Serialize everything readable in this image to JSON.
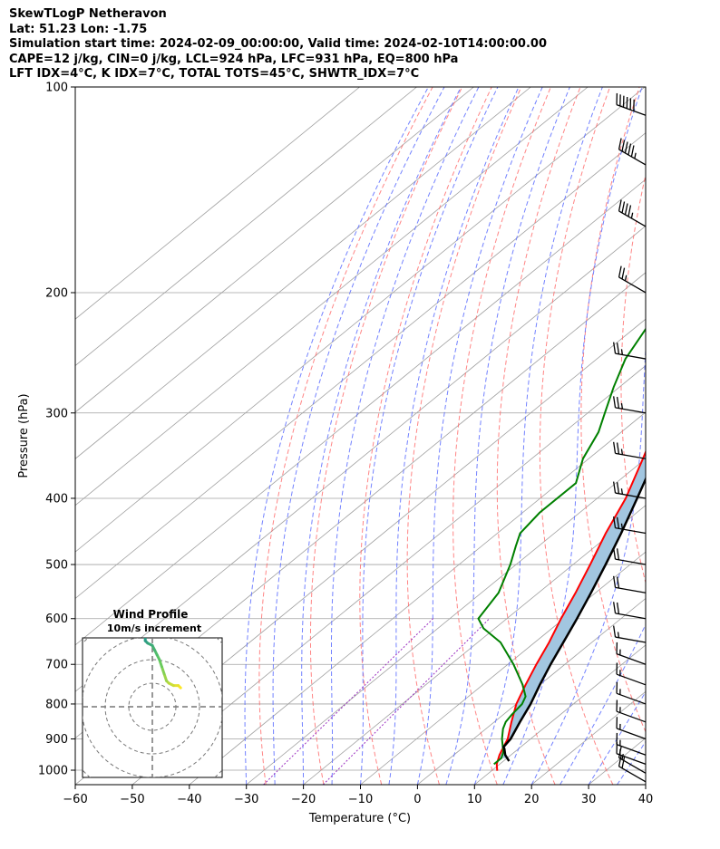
{
  "header": {
    "line1": "SkewTLogP Netheravon",
    "line2": "Lat: 51.23   Lon: -1.75",
    "line3": "Simulation start time: 2024-02-09_00:00:00, Valid time: 2024-02-10T14:00:00.00",
    "line4": "CAPE=12 j/kg, CIN=0 j/kg, LCL=924 hPa, LFC=931 hPa, EQ=800 hPa",
    "line5": "LFT IDX=4$^\\circ$C, K IDX=7$^\\circ$C, TOTAL TOTS=45$^\\circ$C, SHWTR_IDX=7$^\\circ$C"
  },
  "colors": {
    "temperature": "#ff0000",
    "dewpoint": "#008000",
    "parcel": "#000000",
    "cape_fill": "#a2c6e0",
    "dry_adiabat": "#ff6666",
    "moist_adiabat": "#5a6cff",
    "mixing_ratio": "#9a2fc0",
    "isotherm": "#a0a0a0"
  },
  "chart_data": {
    "type": "line",
    "title": "",
    "xlabel": "Temperature ($^\\circ$C)",
    "ylabel": "Pressure (hPa)",
    "xlim": [
      -60,
      40
    ],
    "ylim": [
      1050,
      100
    ],
    "yscale": "log",
    "grid": true,
    "x_ticks": [
      "−60",
      "−50",
      "−40",
      "−30",
      "−20",
      "−10",
      "0",
      "10",
      "20",
      "30",
      "40"
    ],
    "x_tick_values": [
      -60,
      -50,
      -40,
      -30,
      -20,
      -10,
      0,
      10,
      20,
      30,
      40
    ],
    "y_ticks": [
      "100",
      "200",
      "300",
      "400",
      "500",
      "600",
      "700",
      "800",
      "900",
      "1000"
    ],
    "y_tick_values": [
      100,
      200,
      300,
      400,
      500,
      600,
      700,
      800,
      900,
      1000
    ],
    "temperature": {
      "pressure": [
        1002,
        980,
        950,
        925,
        900,
        850,
        800,
        750,
        700,
        650,
        600,
        550,
        500,
        450,
        400,
        350,
        300,
        275,
        250,
        225,
        200,
        185,
        170,
        150,
        130,
        110,
        100
      ],
      "values": [
        11,
        9.5,
        8,
        7,
        6,
        3,
        0,
        -2.5,
        -5,
        -7.5,
        -10.5,
        -13.5,
        -17,
        -21,
        -25,
        -30.5,
        -37,
        -41,
        -44,
        -45.5,
        -48,
        -51.5,
        -55,
        -57,
        -59,
        -61,
        -62
      ]
    },
    "dewpoint": {
      "pressure": [
        980,
        960,
        940,
        920,
        900,
        870,
        850,
        830,
        800,
        780,
        750,
        700,
        650,
        620,
        600,
        550,
        500,
        470,
        450,
        420,
        380,
        350,
        320,
        300,
        275,
        250,
        225,
        200,
        170,
        150,
        130,
        100
      ],
      "values": [
        9,
        9,
        8,
        6.5,
        5,
        3,
        2,
        1.5,
        1,
        0,
        -3,
        -9,
        -16,
        -22,
        -25,
        -27,
        -31,
        -34,
        -36,
        -37,
        -37,
        -41,
        -44,
        -47,
        -51,
        -55,
        -58,
        -60,
        -60,
        -58,
        -58,
        -55
      ]
    },
    "parcel": {
      "pressure": [
        970,
        950,
        930,
        925,
        900,
        850,
        800,
        750,
        700,
        650,
        600,
        550,
        500,
        450,
        400,
        350,
        300,
        250,
        200,
        150,
        100
      ],
      "values": [
        11,
        9,
        7.5,
        7,
        6.5,
        4.5,
        2.5,
        0,
        -2.5,
        -5,
        -7.7,
        -10.8,
        -14.3,
        -18.3,
        -23,
        -28.4,
        -35,
        -42.7,
        -52,
        -63.6,
        -80
      ]
    },
    "wind_barbs": {
      "pressure": [
        1040,
        1010,
        980,
        950,
        900,
        850,
        800,
        750,
        700,
        650,
        600,
        550,
        500,
        450,
        400,
        350,
        300,
        250,
        200,
        160,
        130,
        110
      ],
      "speed_kt": [
        20,
        15,
        15,
        15,
        15,
        15,
        15,
        15,
        15,
        15,
        20,
        20,
        20,
        25,
        25,
        25,
        25,
        25,
        25,
        45,
        55,
        60
      ],
      "direction_deg": [
        300,
        300,
        290,
        290,
        290,
        290,
        290,
        290,
        290,
        280,
        280,
        280,
        280,
        280,
        280,
        280,
        280,
        280,
        300,
        300,
        300,
        290
      ]
    },
    "hodograph": {
      "title": "Wind Profile",
      "subtitle": "10m/s increment",
      "ring_increment_ms": 10,
      "u": [
        12,
        11,
        9,
        7,
        6,
        5,
        4,
        3,
        2,
        1,
        0,
        -2,
        -3,
        -3,
        -4,
        -3,
        -3,
        -2,
        -2,
        -5,
        -7,
        -8,
        -7,
        -5,
        -3,
        -1,
        0,
        1
      ],
      "v": [
        8,
        9,
        9,
        10,
        11,
        14,
        17,
        20,
        22,
        24,
        26,
        27,
        28,
        30,
        33,
        35,
        38,
        40,
        42,
        43,
        47,
        50,
        52,
        53,
        55,
        57,
        58,
        59
      ]
    }
  }
}
